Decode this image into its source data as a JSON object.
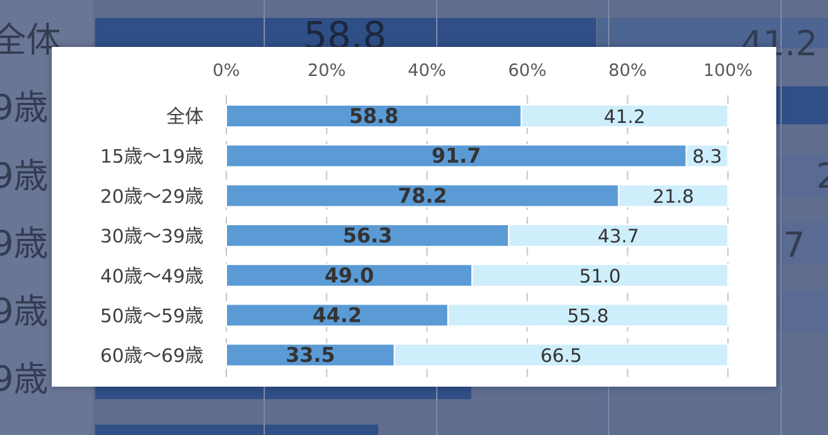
{
  "background_chart": {
    "row_labels": [
      "全体",
      "9歳",
      "9歳",
      "9歳",
      "9歳",
      "9歳"
    ],
    "visible_numbers": [
      "58.8",
      "41.2",
      "2",
      "7"
    ]
  },
  "chart_data": {
    "type": "bar",
    "orientation": "horizontal",
    "stacked": true,
    "percent": true,
    "title": "",
    "xlabel": "",
    "ylabel": "",
    "xlim": [
      0,
      100
    ],
    "x_tick_labels": [
      "0%",
      "20%",
      "40%",
      "60%",
      "80%",
      "100%"
    ],
    "x_ticks": [
      0,
      20,
      40,
      60,
      80,
      100
    ],
    "categories": [
      "全体",
      "15歳～19歳",
      "20歳～29歳",
      "30歳～39歳",
      "40歳～49歳",
      "50歳～59歳",
      "60歳～69歳"
    ],
    "series": [
      {
        "values": [
          58.8,
          91.7,
          78.2,
          56.3,
          49.0,
          44.2,
          33.5
        ],
        "color": "#5b9bd5"
      },
      {
        "values": [
          41.2,
          8.3,
          21.8,
          43.7,
          51.0,
          55.8,
          66.5
        ],
        "color": "#cfeefc"
      }
    ],
    "data_labels": [
      [
        "58.8",
        "91.7",
        "78.2",
        "56.3",
        "49.0",
        "44.2",
        "33.5"
      ],
      [
        "41.2",
        "8.3",
        "21.8",
        "43.7",
        "51.0",
        "55.8",
        "66.5"
      ]
    ],
    "axis_position": "top",
    "grid": "vertical dashed",
    "legend": "none"
  }
}
